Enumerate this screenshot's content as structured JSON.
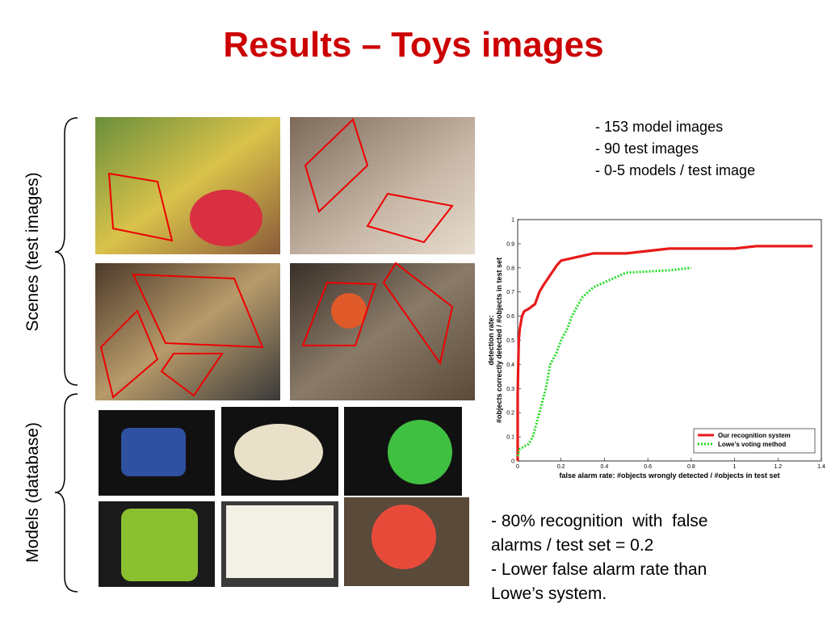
{
  "slide": {
    "title": "Results – Toys images",
    "scenes_label": "Scenes (test images)",
    "models_label": "Models (database)",
    "stats": [
      "- 153 model images",
      "- 90 test images",
      "- 0-5 models / test image"
    ],
    "conclusions": [
      "- 80% recognition  with  false",
      "alarms / test set = 0.2",
      "- Lower false alarm rate than",
      "Lowe’s system."
    ]
  },
  "chart_data": {
    "type": "line",
    "xlabel": "false alarm rate: #objects wrongly detected / #objects in test set",
    "ylabel": [
      "detection rate:",
      "#objects correctly detected / #objects in test set"
    ],
    "xlim": [
      0,
      1.4
    ],
    "ylim": [
      0,
      1
    ],
    "xticks": [
      0,
      0.2,
      0.4,
      0.6,
      0.8,
      1,
      1.2,
      1.4
    ],
    "yticks": [
      0,
      0.1,
      0.2,
      0.3,
      0.4,
      0.5,
      0.6,
      0.7,
      0.8,
      0.9,
      1
    ],
    "legend": "lower right",
    "series": [
      {
        "name": "Our recognition system",
        "color": "#e8191a",
        "style": "solid",
        "x": [
          0,
          0,
          0.005,
          0.01,
          0.02,
          0.03,
          0.05,
          0.08,
          0.1,
          0.12,
          0.15,
          0.18,
          0.2,
          0.25,
          0.3,
          0.35,
          0.5,
          0.6,
          0.7,
          0.8,
          1,
          1.1,
          1.15,
          1.2,
          1.36
        ],
        "values": [
          0,
          0.28,
          0.5,
          0.55,
          0.6,
          0.62,
          0.63,
          0.65,
          0.7,
          0.73,
          0.77,
          0.81,
          0.83,
          0.84,
          0.85,
          0.86,
          0.86,
          0.87,
          0.88,
          0.88,
          0.88,
          0.89,
          0.89,
          0.89,
          0.89
        ]
      },
      {
        "name": "Lowe’s voting method",
        "color": "#22dd22",
        "style": "dotted",
        "x": [
          0,
          0.01,
          0.05,
          0.07,
          0.1,
          0.13,
          0.15,
          0.18,
          0.2,
          0.23,
          0.25,
          0.28,
          0.3,
          0.35,
          0.4,
          0.45,
          0.5,
          0.6,
          0.7,
          0.8
        ],
        "values": [
          0.02,
          0.05,
          0.07,
          0.1,
          0.2,
          0.3,
          0.4,
          0.45,
          0.5,
          0.55,
          0.6,
          0.65,
          0.68,
          0.72,
          0.74,
          0.76,
          0.78,
          0.785,
          0.79,
          0.8
        ]
      }
    ]
  }
}
